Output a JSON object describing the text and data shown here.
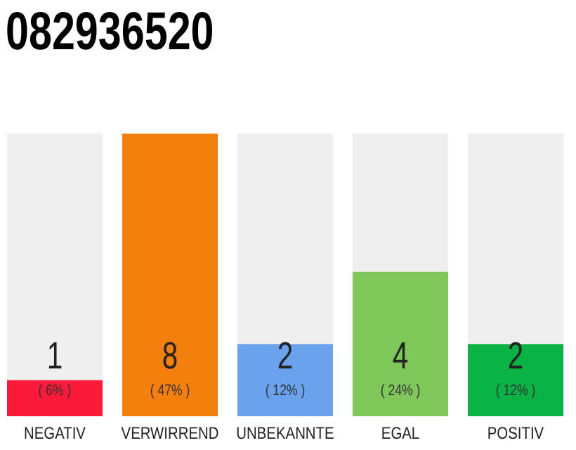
{
  "chart_data": {
    "type": "bar",
    "title": "082936520",
    "categories": [
      "NEGATIV",
      "VERWIRREND",
      "UNBEKANNTE",
      "EGAL",
      "POSITIV"
    ],
    "values": [
      6,
      47,
      12,
      24,
      12
    ],
    "colors": [
      "#fc1a3a",
      "#f47f0c",
      "#6aa2ee",
      "#7ec85a",
      "#0ab245"
    ],
    "value_labels": [
      "( 6% )",
      "( 47% )",
      "( 12% )",
      "( 24% )",
      "( 12% )"
    ],
    "annotations": [
      "1",
      "8",
      "2",
      "4",
      "2"
    ],
    "tick_labels": "x"
  }
}
